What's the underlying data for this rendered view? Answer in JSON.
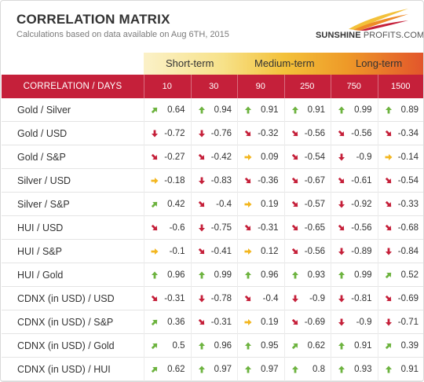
{
  "header": {
    "title": "CORRELATION MATRIX",
    "subtitle": "Calculations based on data available on Aug 6TH, 2015"
  },
  "logo": {
    "text_bold": "SUNSHINE",
    "text_light": "PROFITS.COM",
    "colors": [
      "#f3c13a",
      "#ee8a28",
      "#c5203a"
    ]
  },
  "terms": [
    "Short-term",
    "Medium-term",
    "Long-term"
  ],
  "columns": {
    "label_header": "CORRELATION / DAYS",
    "days": [
      "10",
      "30",
      "90",
      "250",
      "750",
      "1500"
    ]
  },
  "colors": {
    "header_bg": "#c5203a",
    "up": "#6db33f",
    "down": "#c5203a",
    "flat": "#f3b61f"
  },
  "rows": [
    {
      "label": "Gold / Silver",
      "cells": [
        {
          "value": "0.64",
          "icon": "arrow-up-right"
        },
        {
          "value": "0.94",
          "icon": "arrow-up"
        },
        {
          "value": "0.91",
          "icon": "arrow-up"
        },
        {
          "value": "0.91",
          "icon": "arrow-up"
        },
        {
          "value": "0.99",
          "icon": "arrow-up"
        },
        {
          "value": "0.89",
          "icon": "arrow-up"
        }
      ]
    },
    {
      "label": "Gold / USD",
      "cells": [
        {
          "value": "-0.72",
          "icon": "arrow-down"
        },
        {
          "value": "-0.76",
          "icon": "arrow-down"
        },
        {
          "value": "-0.32",
          "icon": "arrow-down-right"
        },
        {
          "value": "-0.56",
          "icon": "arrow-down-right"
        },
        {
          "value": "-0.56",
          "icon": "arrow-down-right"
        },
        {
          "value": "-0.34",
          "icon": "arrow-down-right"
        }
      ]
    },
    {
      "label": "Gold / S&P",
      "cells": [
        {
          "value": "-0.27",
          "icon": "arrow-down-right"
        },
        {
          "value": "-0.42",
          "icon": "arrow-down-right"
        },
        {
          "value": "0.09",
          "icon": "arrow-right"
        },
        {
          "value": "-0.54",
          "icon": "arrow-down-right"
        },
        {
          "value": "-0.9",
          "icon": "arrow-down"
        },
        {
          "value": "-0.14",
          "icon": "arrow-right"
        }
      ]
    },
    {
      "label": "Silver / USD",
      "cells": [
        {
          "value": "-0.18",
          "icon": "arrow-right"
        },
        {
          "value": "-0.83",
          "icon": "arrow-down"
        },
        {
          "value": "-0.36",
          "icon": "arrow-down-right"
        },
        {
          "value": "-0.67",
          "icon": "arrow-down-right"
        },
        {
          "value": "-0.61",
          "icon": "arrow-down-right"
        },
        {
          "value": "-0.54",
          "icon": "arrow-down-right"
        }
      ]
    },
    {
      "label": "Silver / S&P",
      "cells": [
        {
          "value": "0.42",
          "icon": "arrow-up-right"
        },
        {
          "value": "-0.4",
          "icon": "arrow-down-right"
        },
        {
          "value": "0.19",
          "icon": "arrow-right"
        },
        {
          "value": "-0.57",
          "icon": "arrow-down-right"
        },
        {
          "value": "-0.92",
          "icon": "arrow-down"
        },
        {
          "value": "-0.33",
          "icon": "arrow-down-right"
        }
      ]
    },
    {
      "label": "HUI / USD",
      "cells": [
        {
          "value": "-0.6",
          "icon": "arrow-down-right"
        },
        {
          "value": "-0.75",
          "icon": "arrow-down"
        },
        {
          "value": "-0.31",
          "icon": "arrow-down-right"
        },
        {
          "value": "-0.65",
          "icon": "arrow-down-right"
        },
        {
          "value": "-0.56",
          "icon": "arrow-down-right"
        },
        {
          "value": "-0.68",
          "icon": "arrow-down-right"
        }
      ]
    },
    {
      "label": "HUI / S&P",
      "cells": [
        {
          "value": "-0.1",
          "icon": "arrow-right"
        },
        {
          "value": "-0.41",
          "icon": "arrow-down-right"
        },
        {
          "value": "0.12",
          "icon": "arrow-right"
        },
        {
          "value": "-0.56",
          "icon": "arrow-down-right"
        },
        {
          "value": "-0.89",
          "icon": "arrow-down"
        },
        {
          "value": "-0.84",
          "icon": "arrow-down"
        }
      ]
    },
    {
      "label": "HUI / Gold",
      "cells": [
        {
          "value": "0.96",
          "icon": "arrow-up"
        },
        {
          "value": "0.99",
          "icon": "arrow-up"
        },
        {
          "value": "0.96",
          "icon": "arrow-up"
        },
        {
          "value": "0.93",
          "icon": "arrow-up"
        },
        {
          "value": "0.99",
          "icon": "arrow-up"
        },
        {
          "value": "0.52",
          "icon": "arrow-up-right"
        }
      ]
    },
    {
      "label": "CDNX (in USD) / USD",
      "cells": [
        {
          "value": "-0.31",
          "icon": "arrow-down-right"
        },
        {
          "value": "-0.78",
          "icon": "arrow-down"
        },
        {
          "value": "-0.4",
          "icon": "arrow-down-right"
        },
        {
          "value": "-0.9",
          "icon": "arrow-down"
        },
        {
          "value": "-0.81",
          "icon": "arrow-down"
        },
        {
          "value": "-0.69",
          "icon": "arrow-down-right"
        }
      ]
    },
    {
      "label": "CDNX (in USD) / S&P",
      "cells": [
        {
          "value": "0.36",
          "icon": "arrow-up-right"
        },
        {
          "value": "-0.31",
          "icon": "arrow-down-right"
        },
        {
          "value": "0.19",
          "icon": "arrow-right"
        },
        {
          "value": "-0.69",
          "icon": "arrow-down-right"
        },
        {
          "value": "-0.9",
          "icon": "arrow-down"
        },
        {
          "value": "-0.71",
          "icon": "arrow-down"
        }
      ]
    },
    {
      "label": "CDNX (in USD) / Gold",
      "cells": [
        {
          "value": "0.5",
          "icon": "arrow-up-right"
        },
        {
          "value": "0.96",
          "icon": "arrow-up"
        },
        {
          "value": "0.95",
          "icon": "arrow-up"
        },
        {
          "value": "0.62",
          "icon": "arrow-up-right"
        },
        {
          "value": "0.91",
          "icon": "arrow-up"
        },
        {
          "value": "0.39",
          "icon": "arrow-up-right"
        }
      ]
    },
    {
      "label": "CDNX (in USD) / HUI",
      "cells": [
        {
          "value": "0.62",
          "icon": "arrow-up-right"
        },
        {
          "value": "0.97",
          "icon": "arrow-up"
        },
        {
          "value": "0.97",
          "icon": "arrow-up"
        },
        {
          "value": "0.8",
          "icon": "arrow-up"
        },
        {
          "value": "0.93",
          "icon": "arrow-up"
        },
        {
          "value": "0.91",
          "icon": "arrow-up"
        }
      ]
    }
  ]
}
